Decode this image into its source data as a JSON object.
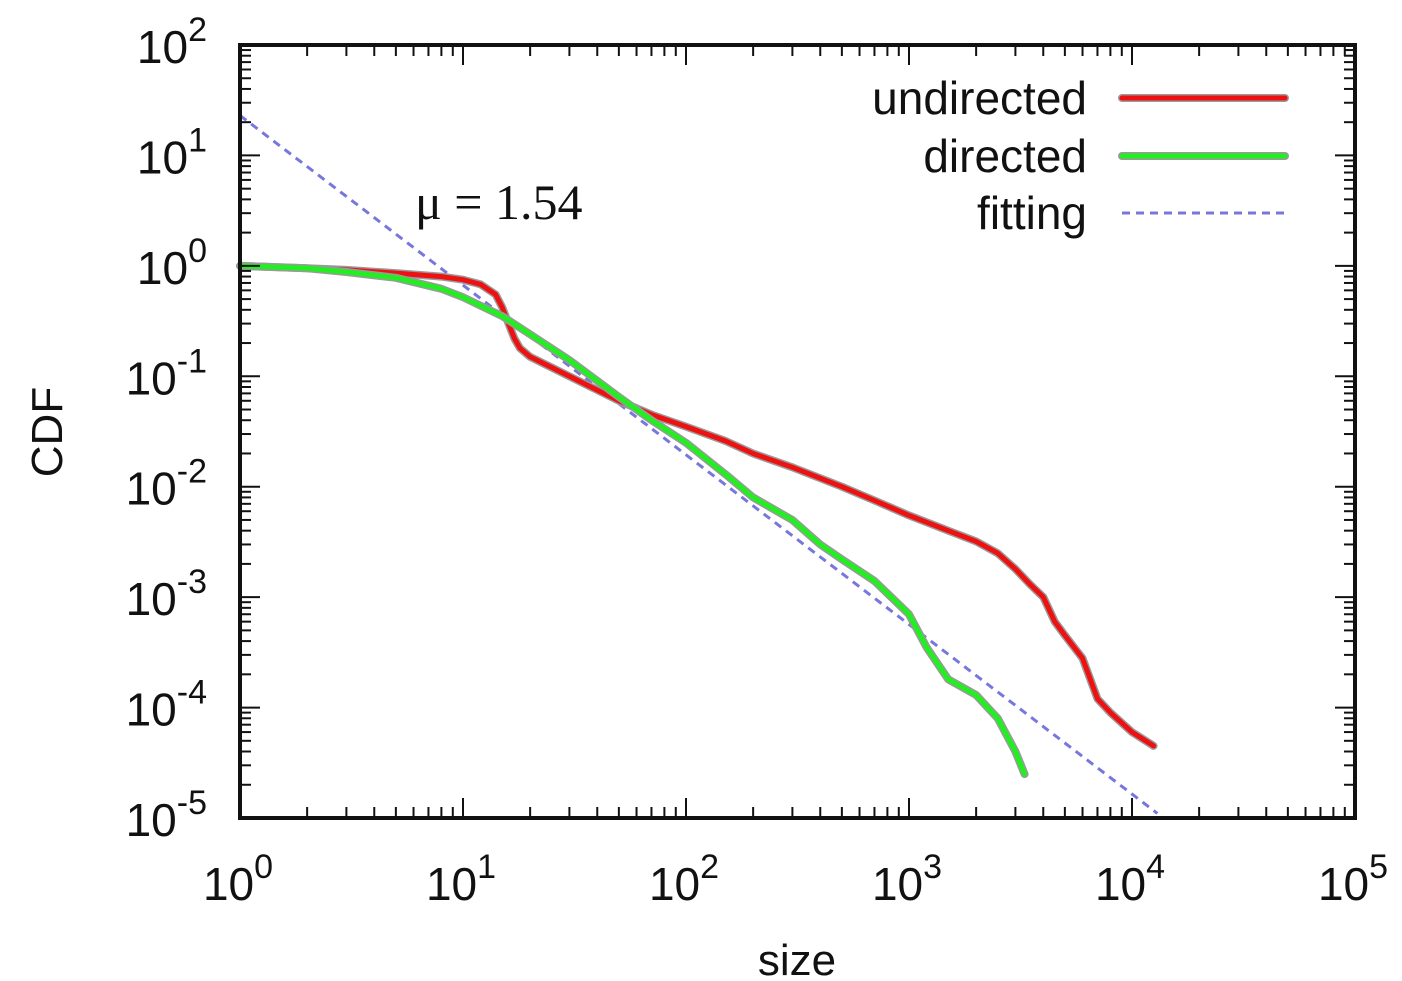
{
  "chart_data": {
    "type": "line",
    "xlabel": "size",
    "ylabel": "CDF",
    "x_scale": "log",
    "y_scale": "log",
    "xlim": [
      1,
      100000
    ],
    "ylim": [
      1e-05,
      100
    ],
    "x_ticks": [
      {
        "value": 1,
        "base": "10",
        "exp": "0"
      },
      {
        "value": 10,
        "base": "10",
        "exp": "1"
      },
      {
        "value": 100,
        "base": "10",
        "exp": "2"
      },
      {
        "value": 1000,
        "base": "10",
        "exp": "3"
      },
      {
        "value": 10000,
        "base": "10",
        "exp": "4"
      },
      {
        "value": 100000,
        "base": "10",
        "exp": "5"
      }
    ],
    "y_ticks": [
      {
        "value": 100,
        "base": "10",
        "exp": "2"
      },
      {
        "value": 10,
        "base": "10",
        "exp": "1"
      },
      {
        "value": 1,
        "base": "10",
        "exp": "0"
      },
      {
        "value": 0.1,
        "base": "10",
        "exp": "-1"
      },
      {
        "value": 0.01,
        "base": "10",
        "exp": "-2"
      },
      {
        "value": 0.001,
        "base": "10",
        "exp": "-3"
      },
      {
        "value": 0.0001,
        "base": "10",
        "exp": "-4"
      },
      {
        "value": 1e-05,
        "base": "10",
        "exp": "-5"
      }
    ],
    "grid": false,
    "legend_position": "top-right",
    "annotation": "μ = 1.54",
    "series": [
      {
        "name": "undirected",
        "color": "#ee1111",
        "style": "solid",
        "points": [
          [
            1,
            1.0
          ],
          [
            2,
            0.95
          ],
          [
            3,
            0.92
          ],
          [
            5,
            0.86
          ],
          [
            8,
            0.8
          ],
          [
            10,
            0.75
          ],
          [
            12,
            0.68
          ],
          [
            14,
            0.55
          ],
          [
            15,
            0.42
          ],
          [
            16,
            0.3
          ],
          [
            17,
            0.22
          ],
          [
            18,
            0.18
          ],
          [
            20,
            0.15
          ],
          [
            25,
            0.12
          ],
          [
            30,
            0.1
          ],
          [
            40,
            0.075
          ],
          [
            50,
            0.06
          ],
          [
            70,
            0.045
          ],
          [
            100,
            0.035
          ],
          [
            150,
            0.026
          ],
          [
            200,
            0.02
          ],
          [
            300,
            0.015
          ],
          [
            500,
            0.01
          ],
          [
            700,
            0.0075
          ],
          [
            1000,
            0.0055
          ],
          [
            1500,
            0.004
          ],
          [
            2000,
            0.0032
          ],
          [
            2500,
            0.0025
          ],
          [
            3000,
            0.0018
          ],
          [
            3500,
            0.0013
          ],
          [
            4000,
            0.001
          ],
          [
            4500,
            0.0006
          ],
          [
            5000,
            0.00045
          ],
          [
            6000,
            0.00028
          ],
          [
            7000,
            0.00012
          ],
          [
            8000,
            9e-05
          ],
          [
            10000,
            6e-05
          ],
          [
            12500,
            4.5e-05
          ]
        ]
      },
      {
        "name": "directed",
        "color": "#22ee22",
        "style": "solid",
        "points": [
          [
            1,
            1.0
          ],
          [
            2,
            0.95
          ],
          [
            3,
            0.88
          ],
          [
            5,
            0.78
          ],
          [
            8,
            0.62
          ],
          [
            10,
            0.52
          ],
          [
            15,
            0.35
          ],
          [
            20,
            0.24
          ],
          [
            30,
            0.14
          ],
          [
            50,
            0.065
          ],
          [
            70,
            0.04
          ],
          [
            100,
            0.025
          ],
          [
            150,
            0.013
          ],
          [
            200,
            0.008
          ],
          [
            300,
            0.005
          ],
          [
            400,
            0.003
          ],
          [
            500,
            0.0022
          ],
          [
            700,
            0.0014
          ],
          [
            1000,
            0.0007
          ],
          [
            1200,
            0.00035
          ],
          [
            1500,
            0.00018
          ],
          [
            2000,
            0.00013
          ],
          [
            2500,
            8e-05
          ],
          [
            3000,
            4e-05
          ],
          [
            3300,
            2.5e-05
          ]
        ]
      },
      {
        "name": "fitting",
        "color": "#7777dd",
        "style": "dashed",
        "points": [
          [
            1,
            23.0
          ],
          [
            13000,
            1.1e-05
          ]
        ]
      }
    ]
  }
}
